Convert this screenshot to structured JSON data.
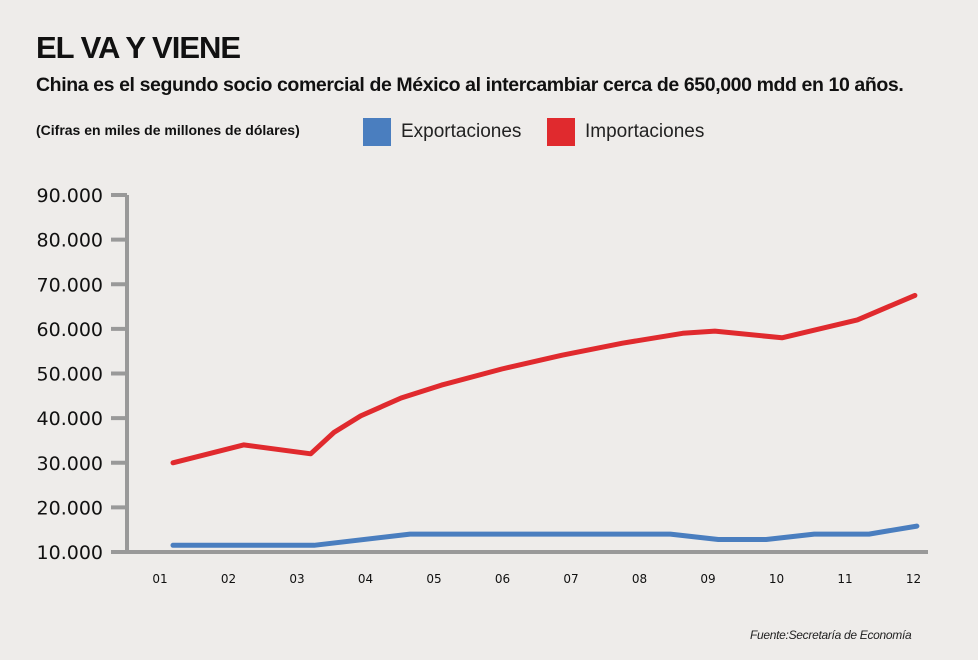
{
  "header": {
    "title": "EL VA Y VIENE",
    "subtitle": "China es el segundo socio comercial de México al intercambiar cerca de 650,000 mdd en 10 años.",
    "units_note": "(Cifras en miles de millones de dólares)"
  },
  "footer": {
    "source": "Fuente:Secretaría de Economía"
  },
  "chart_data": {
    "type": "line",
    "title": "EL VA Y VIENE",
    "subtitle": "China es el segundo socio comercial de México al intercambiar cerca de 650,000 mdd en 10 años.",
    "xlabel": "",
    "ylabel": "(Cifras en miles de millones de dólares)",
    "categories": [
      "01",
      "02",
      "03",
      "04",
      "05",
      "06",
      "07",
      "08",
      "09",
      "10",
      "11",
      "12"
    ],
    "yticks": [
      "10.000",
      "20.000",
      "30.000",
      "40.000",
      "50.000",
      "60.000",
      "70.000",
      "80.000",
      "90.000"
    ],
    "ytick_values": [
      10000,
      20000,
      30000,
      40000,
      50000,
      60000,
      70000,
      80000,
      90000
    ],
    "ylim": [
      10000,
      90000
    ],
    "grid": false,
    "legend": "top",
    "series": [
      {
        "name": "Exportaciones",
        "color": "#4a7ebf",
        "points": [
          {
            "x": 0.19,
            "y": 11500
          },
          {
            "x": 2.25,
            "y": 11500
          },
          {
            "x": 3.65,
            "y": 14000
          },
          {
            "x": 7.45,
            "y": 14000
          },
          {
            "x": 8.15,
            "y": 12800
          },
          {
            "x": 8.85,
            "y": 12800
          },
          {
            "x": 9.55,
            "y": 14000
          },
          {
            "x": 10.35,
            "y": 14000
          },
          {
            "x": 11.05,
            "y": 15800
          }
        ]
      },
      {
        "name": "Importaciones",
        "color": "#e02a2e",
        "points": [
          {
            "x": 0.19,
            "y": 30000
          },
          {
            "x": 1.22,
            "y": 34000
          },
          {
            "x": 2.2,
            "y": 32000
          },
          {
            "x": 2.54,
            "y": 36800
          },
          {
            "x": 2.93,
            "y": 40500
          },
          {
            "x": 3.52,
            "y": 44500
          },
          {
            "x": 4.11,
            "y": 47400
          },
          {
            "x": 4.99,
            "y": 51000
          },
          {
            "x": 5.87,
            "y": 54100
          },
          {
            "x": 6.75,
            "y": 56800
          },
          {
            "x": 7.63,
            "y": 59000
          },
          {
            "x": 8.1,
            "y": 59500
          },
          {
            "x": 9.08,
            "y": 58000
          },
          {
            "x": 10.18,
            "y": 62000
          },
          {
            "x": 11.02,
            "y": 67500
          }
        ]
      }
    ]
  }
}
